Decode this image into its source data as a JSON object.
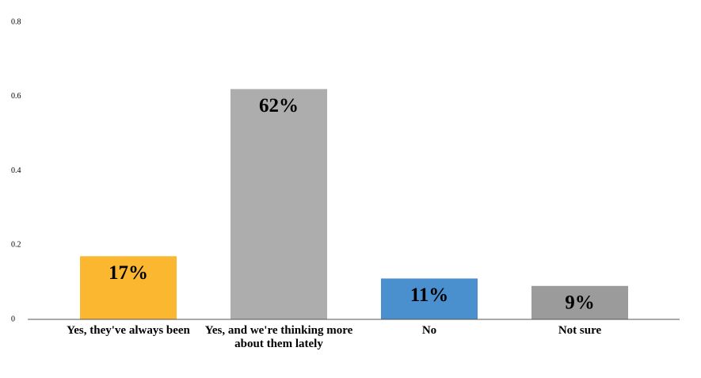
{
  "chart_data": {
    "type": "bar",
    "categories": [
      "Yes, they've always been",
      "Yes, and we're thinking more about them lately",
      "No",
      "Not sure"
    ],
    "values": [
      0.17,
      0.62,
      0.11,
      0.09
    ],
    "value_labels": [
      "17%",
      "62%",
      "11%",
      "9%"
    ],
    "colors": [
      "#fbb72f",
      "#adadad",
      "#4a90cf",
      "#9b9b9b"
    ],
    "ylim": [
      0,
      0.8
    ],
    "yticks": [
      0,
      0.2,
      0.4,
      0.6,
      0.8
    ],
    "grid": false
  }
}
